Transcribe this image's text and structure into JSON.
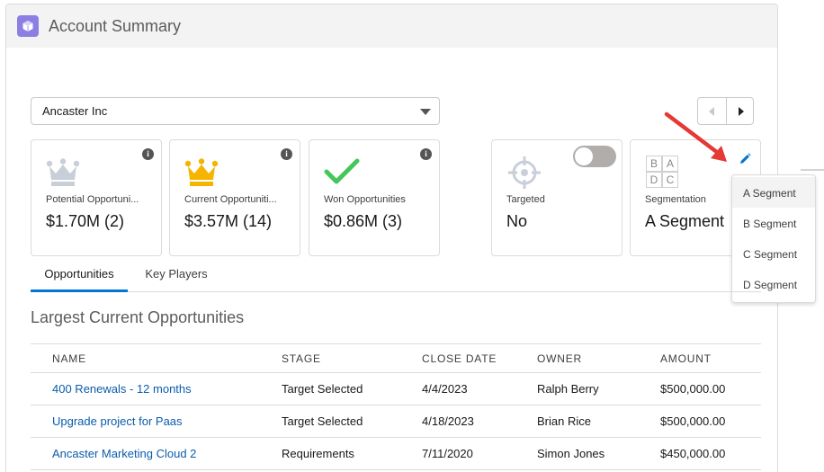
{
  "card": {
    "title": "Account Summary",
    "icon": "cube-icon"
  },
  "account_select": {
    "value": "Ancaster Inc"
  },
  "tiles": [
    {
      "icon": "crown-icon",
      "icon_color": "#c9cfd9",
      "label": "Potential Opportuni...",
      "value": "$1.70M (2)"
    },
    {
      "icon": "crown-icon",
      "icon_color": "#f4b400",
      "label": "Current Opportuniti...",
      "value": "$3.57M (14)"
    },
    {
      "icon": "check-icon",
      "icon_color": "#45c65a",
      "label": "Won Opportunities",
      "value": "$0.86M (3)"
    }
  ],
  "targeted": {
    "label": "Targeted",
    "value": "No",
    "toggle_on": false
  },
  "segmentation": {
    "grid_letters": [
      "B",
      "A",
      "D",
      "C"
    ],
    "label": "Segmentation",
    "value": "A Segment",
    "options": [
      "A Segment",
      "B Segment",
      "C Segment",
      "D Segment"
    ]
  },
  "tabs": [
    "Opportunities",
    "Key Players"
  ],
  "active_tab": "Opportunities",
  "section_title": "Largest Current Opportunities",
  "table": {
    "columns": [
      "NAME",
      "STAGE",
      "CLOSE DATE",
      "OWNER",
      "AMOUNT"
    ],
    "rows": [
      [
        "400 Renewals - 12 months",
        "Target Selected",
        "4/4/2023",
        "Ralph Berry",
        "$500,000.00"
      ],
      [
        "Upgrade project for Paas",
        "Target Selected",
        "4/18/2023",
        "Brian Rice",
        "$500,000.00"
      ],
      [
        "Ancaster Marketing Cloud 2",
        "Requirements",
        "7/11/2020",
        "Simon Jones",
        "$450,000.00"
      ]
    ]
  },
  "colors": {
    "accent": "#0176d3",
    "link": "#0b5cab",
    "annotation_arrow": "#e53935"
  }
}
